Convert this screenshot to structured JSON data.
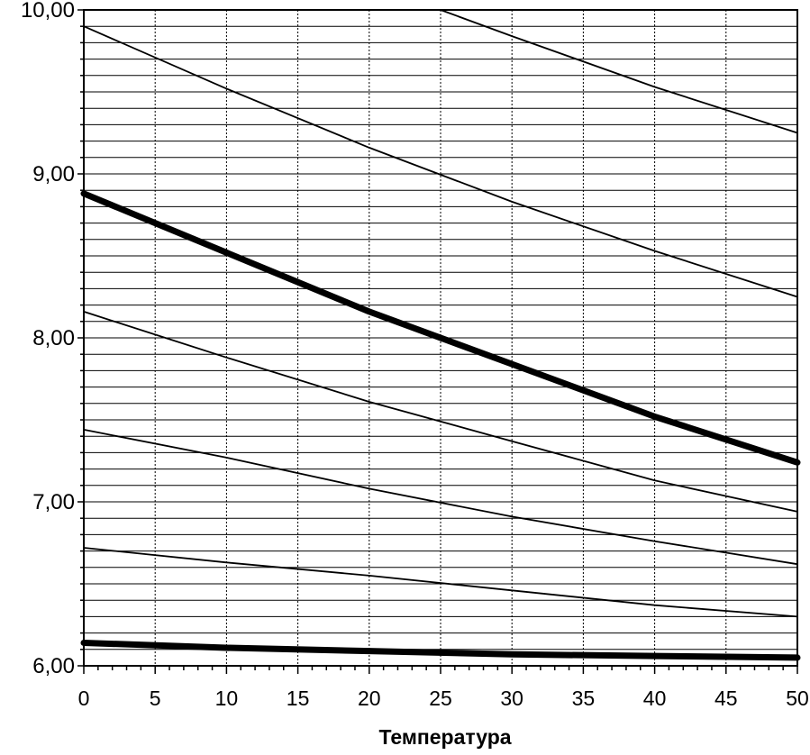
{
  "chart_data": {
    "type": "line",
    "title": "",
    "xlabel": "Температура",
    "ylabel": "",
    "xlim": [
      0,
      50
    ],
    "ylim": [
      6.0,
      10.0
    ],
    "x_ticks": [
      "0",
      "5",
      "10",
      "15",
      "20",
      "25",
      "30",
      "35",
      "40",
      "45",
      "50"
    ],
    "y_ticks": [
      "6,00",
      "7,00",
      "8,00",
      "9,00",
      "10,00"
    ],
    "y_tick_values": [
      6,
      7,
      8,
      9,
      10
    ],
    "grid": true,
    "legend": "none",
    "colors": {
      "line": "#000000",
      "grid": "#000000",
      "background": "#ffffff"
    },
    "series": [
      {
        "weight": "thick",
        "x": [
          0,
          10,
          20,
          30,
          40,
          50
        ],
        "y": [
          6.14,
          6.11,
          6.09,
          6.07,
          6.06,
          6.05
        ]
      },
      {
        "weight": "thin",
        "x": [
          0,
          10,
          20,
          30,
          40,
          50
        ],
        "y": [
          6.72,
          6.63,
          6.55,
          6.46,
          6.37,
          6.3
        ]
      },
      {
        "weight": "thin",
        "x": [
          0,
          10,
          20,
          30,
          40,
          50
        ],
        "y": [
          7.44,
          7.27,
          7.08,
          6.91,
          6.76,
          6.62
        ]
      },
      {
        "weight": "thin",
        "x": [
          0,
          10,
          20,
          30,
          40,
          50
        ],
        "y": [
          8.16,
          7.88,
          7.61,
          7.37,
          7.13,
          6.94
        ]
      },
      {
        "weight": "thick",
        "x": [
          0,
          10,
          20,
          30,
          40,
          50
        ],
        "y": [
          8.88,
          8.52,
          8.16,
          7.84,
          7.52,
          7.24
        ]
      },
      {
        "weight": "thin",
        "x": [
          0,
          10,
          20,
          30,
          40,
          50
        ],
        "y": [
          9.9,
          9.52,
          9.16,
          8.83,
          8.53,
          8.25
        ]
      },
      {
        "weight": "thin",
        "x": [
          25,
          30,
          40,
          50
        ],
        "y": [
          10.0,
          9.84,
          9.53,
          9.25
        ]
      }
    ]
  }
}
